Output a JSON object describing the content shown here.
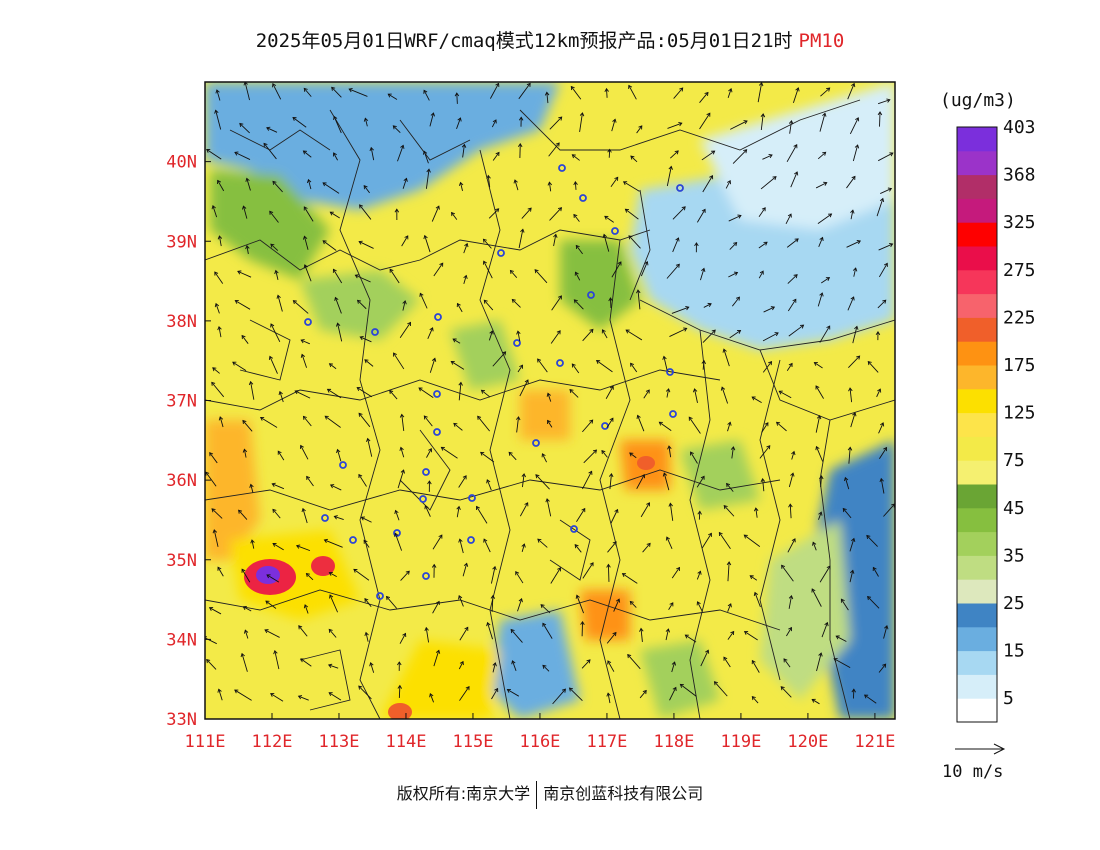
{
  "title": {
    "main": "2025年05月01日WRF/cmaq模式12km预报产品:05月01日21时",
    "variable": "PM10"
  },
  "axes": {
    "lon_labels": [
      "111E",
      "112E",
      "113E",
      "114E",
      "115E",
      "116E",
      "117E",
      "118E",
      "119E",
      "120E",
      "121E"
    ],
    "lat_labels": [
      "33N",
      "34N",
      "35N",
      "36N",
      "37N",
      "38N",
      "39N",
      "40N"
    ],
    "lon_range": [
      111,
      121.3
    ],
    "lat_range": [
      33,
      41
    ]
  },
  "colorbar": {
    "unit": "(ug/m3)",
    "levels": [
      "5",
      "15",
      "25",
      "35",
      "45",
      "75",
      "125",
      "175",
      "225",
      "275",
      "325",
      "368",
      "403"
    ],
    "colors": [
      "#ffffff",
      "#d6eef9",
      "#a7d8f2",
      "#6aaee0",
      "#3f84c4",
      "#dde8bd",
      "#bfdd82",
      "#a3d05c",
      "#86bf3f",
      "#6aa534",
      "#f5f070",
      "#f3ea48",
      "#fde44a",
      "#fce000",
      "#fdb62b",
      "#fe9212",
      "#f05f2a",
      "#f7636c",
      "#f6365a",
      "#ea0e4a",
      "#fe0000",
      "#c51a7c",
      "#b12e68",
      "#9b33c9",
      "#7b2fdc"
    ],
    "colors_note": ""
  },
  "wind_reference": "10 m/s",
  "footer": {
    "left": "版权所有:南京大学",
    "right": "南京创蓝科技有限公司"
  }
}
